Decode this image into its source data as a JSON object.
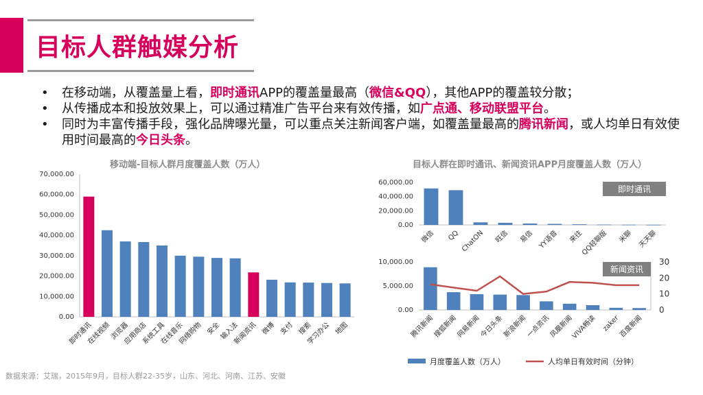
{
  "title": "目标人群触媒分析",
  "bullets": [
    [
      "在移动端，从覆盖量上看，",
      {
        "hl": "即时通讯"
      },
      "APP的覆盖量最高（",
      {
        "hl": "微信&QQ"
      },
      "），其他APP的覆盖较分散；"
    ],
    [
      "从传播成本和投放效果上，可以通过精准广告平台来有效传播，如",
      {
        "hl": "广点通、移动联盟平台"
      },
      "。"
    ],
    [
      "同时为丰富传播手段，强化品牌曝光量，可以重点关注新闻客户端，如覆盖量最高的",
      {
        "hl": "腾讯新闻"
      },
      "，或人均单日有效使用时间最高的",
      {
        "hl": "今日头条"
      },
      "。"
    ]
  ],
  "colors": {
    "accent": "#d6005c",
    "bar": "#4f81bd",
    "line": "#c0504d",
    "tag": "#808080"
  },
  "source": "数据来源：艾瑞，2015年9月，目标人群22-35岁，山东、河北、河南、江苏、安徽",
  "chart_data": [
    {
      "type": "bar",
      "title": "移动端-目标人群月度覆盖人数（万人）",
      "categories": [
        "即时通讯",
        "在线视频",
        "浏览器",
        "应用商店",
        "系统工具",
        "在线音乐",
        "网络购物",
        "安全",
        "输入法",
        "新闻资讯",
        "微博",
        "支付",
        "搜索",
        "学习办公",
        "地图"
      ],
      "values": [
        59000,
        42500,
        37000,
        36700,
        35000,
        30000,
        29500,
        28900,
        28700,
        21800,
        18200,
        16900,
        16800,
        16600,
        16400
      ],
      "highlight": [
        0,
        9
      ],
      "ylim": [
        0,
        70000
      ],
      "yticks": [
        "0.00",
        "10,000.00",
        "20,000.00",
        "30,000.00",
        "40,000.00",
        "50,000.00",
        "60,000.00",
        "70,000.00"
      ]
    },
    {
      "type": "bar",
      "title": "目标人群在即时通讯、新闻资讯APP月度覆盖人数（万人）",
      "panel_label": "即时通讯",
      "categories": [
        "微信",
        "QQ",
        "ChatON",
        "旺信",
        "易信",
        "YY语音",
        "来往",
        "QQ轻聊版",
        "米聊",
        "天天聊"
      ],
      "values": [
        51500,
        49000,
        3600,
        3000,
        2000,
        1500,
        900,
        500,
        300,
        200
      ],
      "ylim": [
        0,
        60000
      ],
      "yticks": [
        "0.00",
        "20,000.00",
        "40,000.00",
        "60,000.00"
      ]
    },
    {
      "type": "bar+line",
      "panel_label": "新闻资讯",
      "categories": [
        "腾讯新闻",
        "搜狐新闻",
        "网易新闻",
        "今日头条",
        "新浪新闻",
        "一点资讯",
        "凤凰新闻",
        "VIVA畅读",
        "zaker",
        "百度新闻"
      ],
      "series": [
        {
          "name": "月度覆盖人数（万人）",
          "type": "bar",
          "values": [
            8900,
            3700,
            3300,
            3200,
            3100,
            1800,
            1300,
            1000,
            450,
            400
          ]
        },
        {
          "name": "人均单日有效时间（分钟）",
          "type": "line",
          "values": [
            16,
            14,
            12,
            21,
            10,
            11.5,
            17.5,
            17,
            15.5,
            15.5
          ]
        }
      ],
      "ylim": [
        0,
        10000
      ],
      "yticks": [
        "0.00",
        "5,000.00",
        "10,000.00"
      ],
      "y2lim": [
        0,
        30
      ],
      "y2ticks": [
        "0",
        "10",
        "20",
        "30"
      ]
    }
  ]
}
